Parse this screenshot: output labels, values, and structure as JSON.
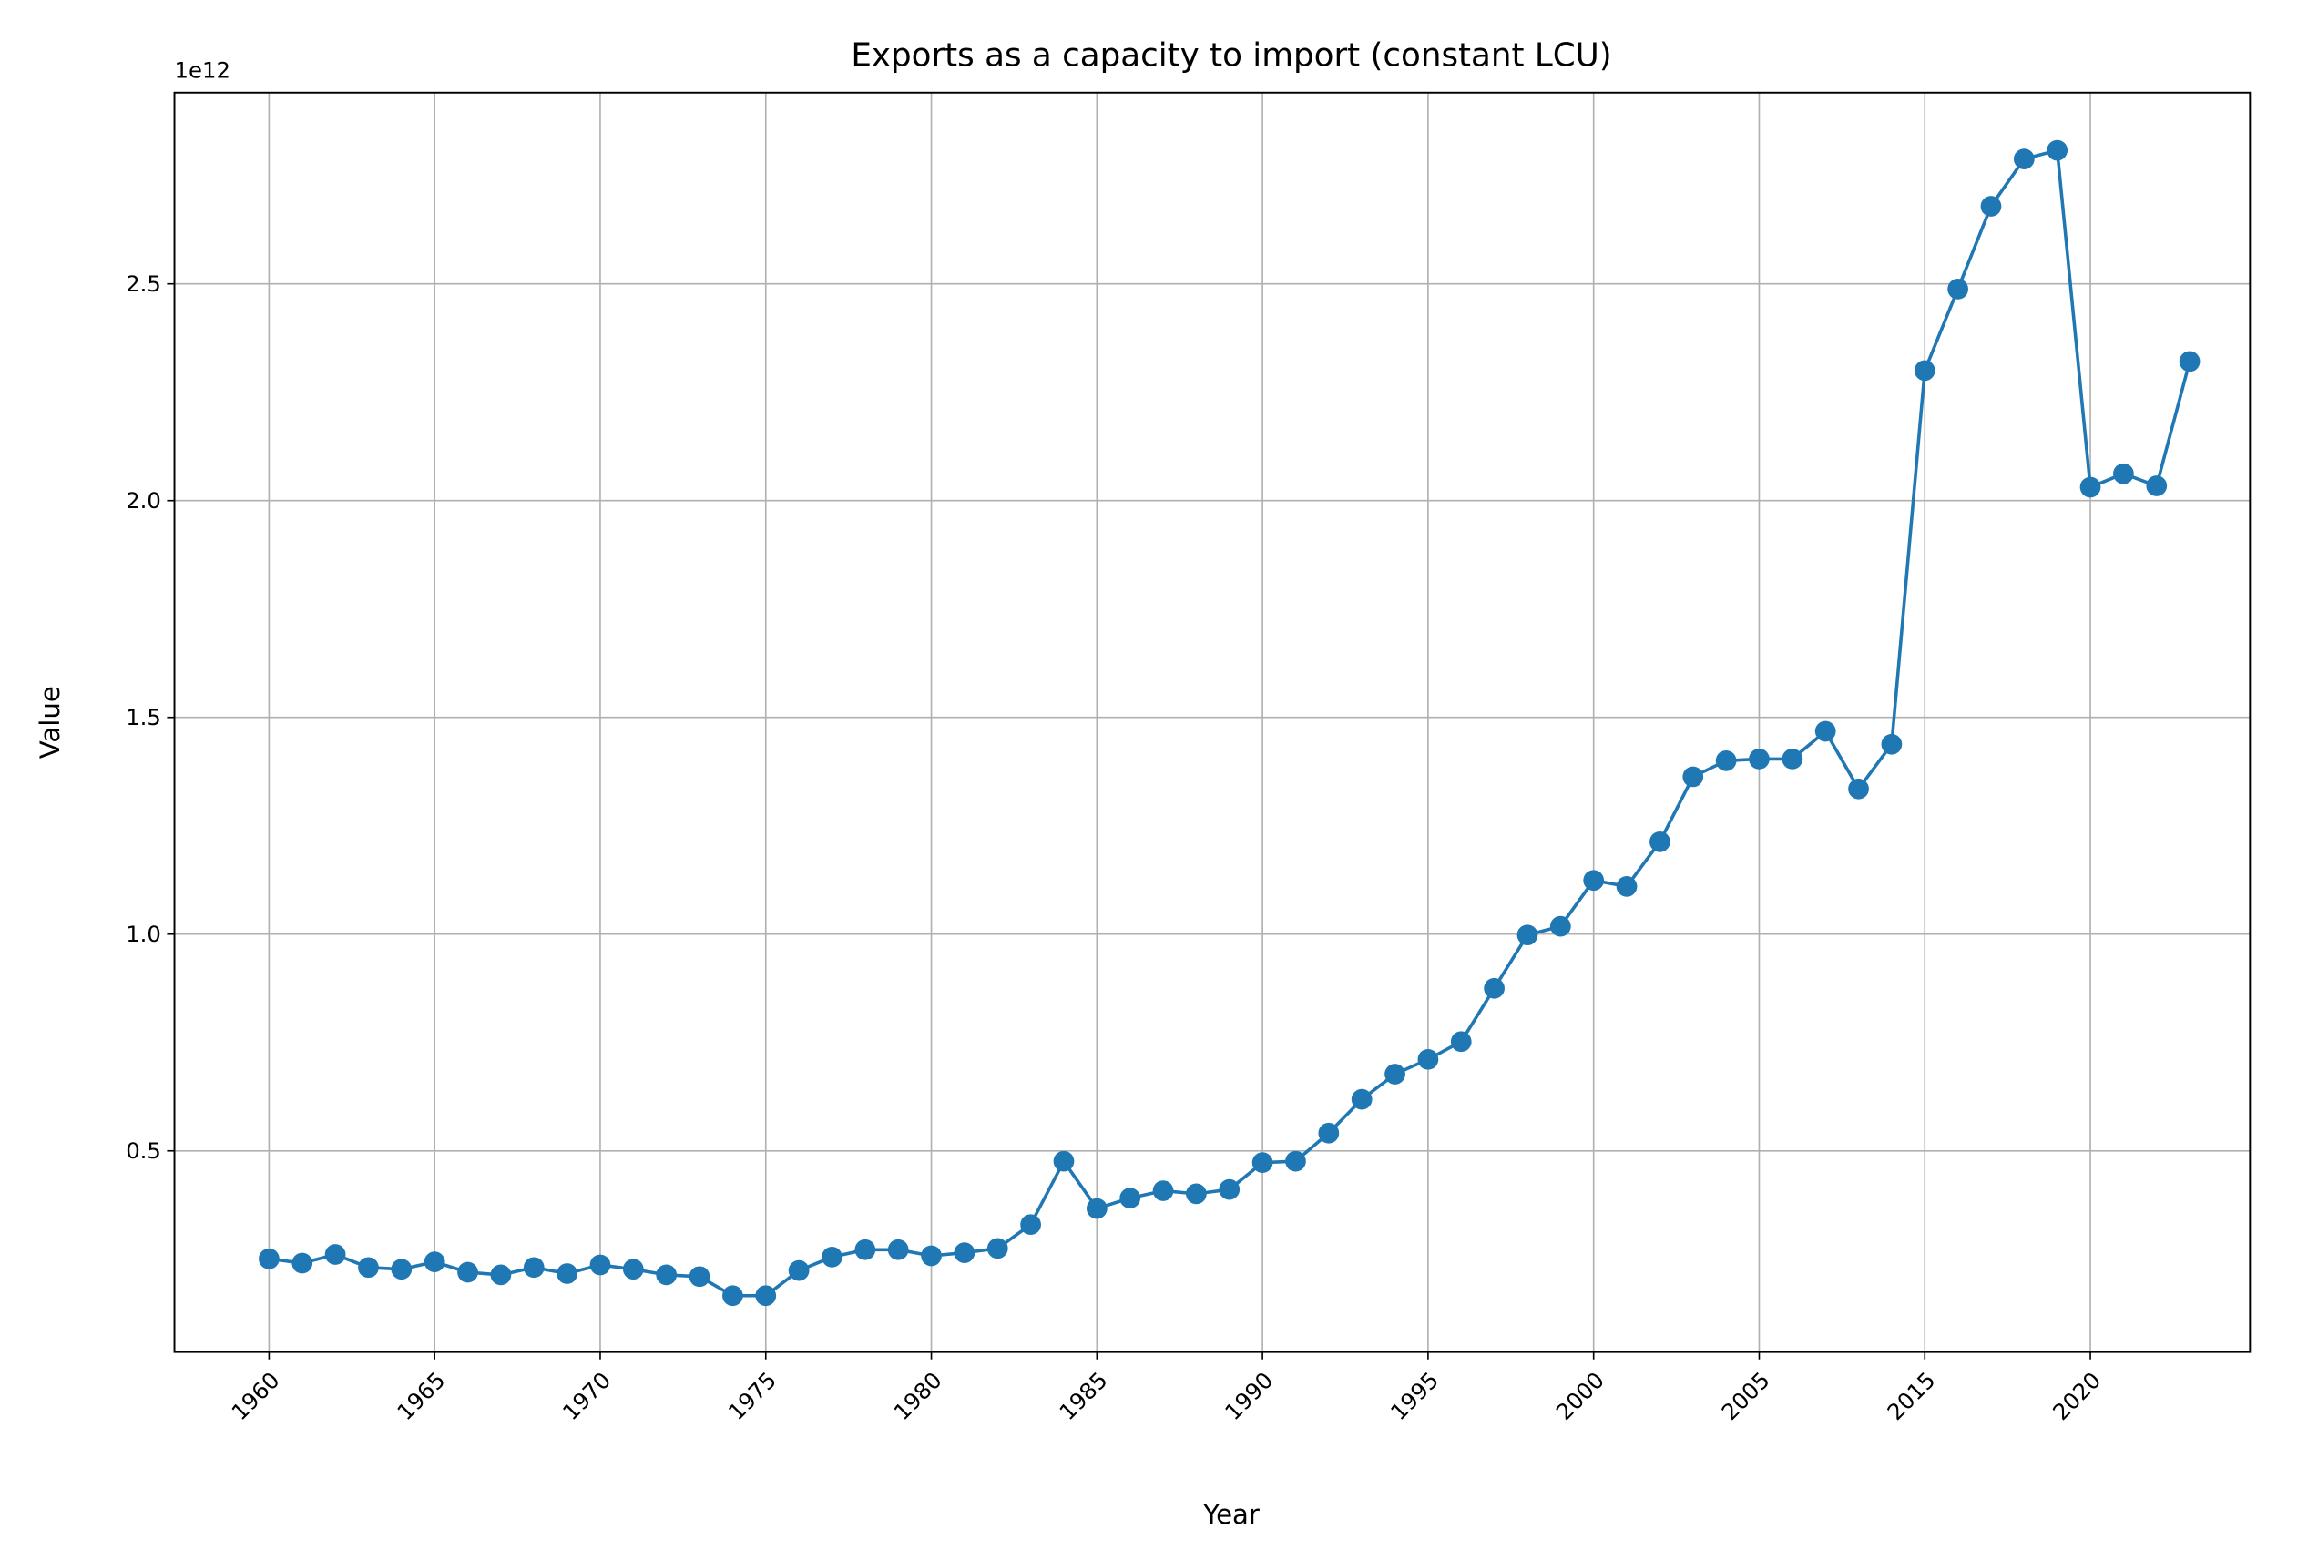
{
  "chart_data": {
    "type": "line",
    "title": "Exports as a capacity to import (constant LCU)",
    "x_label": "Year",
    "y_label": "Value",
    "y_offset_label": "1e12",
    "categories": [
      "1960",
      null,
      null,
      null,
      null,
      "1965",
      null,
      null,
      null,
      null,
      "1970",
      null,
      null,
      null,
      null,
      "1975",
      null,
      null,
      null,
      null,
      "1980",
      null,
      null,
      null,
      null,
      "1985",
      null,
      null,
      null,
      null,
      "1990",
      null,
      null,
      null,
      null,
      "1995",
      null,
      null,
      null,
      null,
      "2000",
      null,
      null,
      null,
      null,
      "2005",
      null,
      null,
      null,
      null,
      "2015",
      null,
      null,
      null,
      null,
      "2020",
      null,
      null,
      null
    ],
    "series": [
      {
        "name": "Value",
        "color": "#1f77b4",
        "values": [
          0.251,
          0.241,
          0.261,
          0.231,
          0.227,
          0.244,
          0.22,
          0.214,
          0.231,
          0.217,
          0.237,
          0.227,
          0.214,
          0.21,
          0.166,
          0.166,
          0.224,
          0.255,
          0.272,
          0.272,
          0.258,
          0.265,
          0.275,
          0.33,
          0.476,
          0.367,
          0.391,
          0.408,
          0.401,
          0.411,
          0.473,
          0.476,
          0.541,
          0.619,
          0.677,
          0.711,
          0.752,
          0.875,
          0.998,
          1.018,
          1.124,
          1.11,
          1.213,
          1.363,
          1.4,
          1.404,
          1.404,
          1.468,
          1.335,
          1.438,
          2.3,
          2.488,
          2.679,
          2.788,
          2.808,
          2.031,
          2.062,
          2.034,
          2.321
        ]
      }
    ],
    "ylim": [
      0.036,
      2.941
    ],
    "yticks": [
      0.5,
      {
        "value": 1,
        "label": "1.0"
      },
      1.5,
      {
        "value": 2,
        "label": "2.0"
      },
      2.5
    ],
    "grid": true
  }
}
